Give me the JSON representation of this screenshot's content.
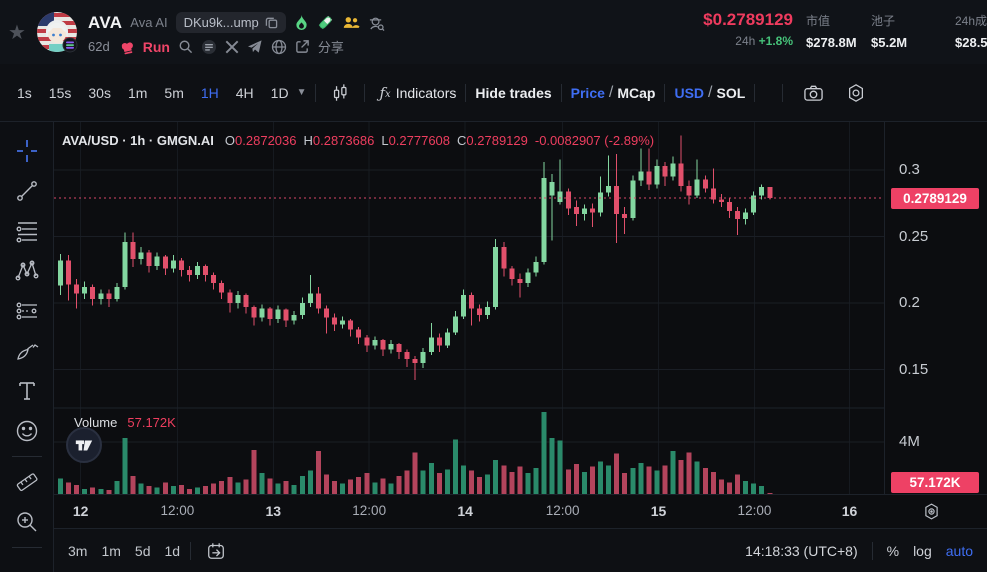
{
  "token_header": {
    "symbol": "AVA",
    "name": "Ava AI",
    "address_short": "DKu9k...ump",
    "age": "62d",
    "run_label": "Run",
    "share_label": "分享",
    "price": "$0.2789129",
    "change_label": "24h",
    "change_value": "+1.8%",
    "stats": [
      {
        "label": "市值",
        "value": "$278.8M"
      },
      {
        "label": "池子",
        "value": "$5.2M"
      },
      {
        "label": "24h成",
        "value": "$28.5"
      }
    ]
  },
  "toolbar": {
    "timeframes": [
      "1s",
      "15s",
      "30s",
      "1m",
      "5m",
      "1H",
      "4H",
      "1D"
    ],
    "active_timeframe": "1H",
    "indicators_label": "Indicators",
    "hide_trades_label": "Hide trades",
    "price_label": "Price",
    "mcap_label": "MCap",
    "usd_label": "USD",
    "sol_label": "SOL",
    "slash": "/"
  },
  "sidebar_tools": [
    "crosshair",
    "trend-line",
    "fib-retracement",
    "xabcd-pattern",
    "long-short-position",
    "brush",
    "text",
    "emoji",
    "ruler",
    "zoom-in"
  ],
  "legend": {
    "title": "AVA/USD · 1h · GMGN.AI",
    "o_label": "O",
    "o": "0.2872036",
    "h_label": "H",
    "h": "0.2873686",
    "l_label": "L",
    "l": "0.2777608",
    "c_label": "C",
    "c": "0.2789129",
    "change": "-0.0082907 (-2.89%)"
  },
  "volume_pane": {
    "label": "Volume",
    "value": "57.172K"
  },
  "price_axis": {
    "ticks": [
      {
        "label": "0.3",
        "value": 0.3
      },
      {
        "label": "0.25",
        "value": 0.25
      },
      {
        "label": "0.2",
        "value": 0.2
      },
      {
        "label": "0.15",
        "value": 0.15
      }
    ],
    "current_badge": "0.2789129",
    "volume_tick": {
      "label": "4M",
      "value_m": 4
    },
    "volume_badge": "57.172K"
  },
  "time_axis": {
    "ticks": [
      {
        "label": "12",
        "idx": 2.5,
        "major": true
      },
      {
        "label": "12:00",
        "idx": 14.5,
        "major": false
      },
      {
        "label": "13",
        "idx": 26.4,
        "major": true
      },
      {
        "label": "12:00",
        "idx": 38.3,
        "major": false
      },
      {
        "label": "14",
        "idx": 50.2,
        "major": true
      },
      {
        "label": "12:00",
        "idx": 62.3,
        "major": false
      },
      {
        "label": "15",
        "idx": 74.2,
        "major": true
      },
      {
        "label": "12:00",
        "idx": 86.1,
        "major": false
      },
      {
        "label": "16",
        "idx": 97.9,
        "major": true
      }
    ]
  },
  "bottom_bar": {
    "ranges": [
      "3m",
      "1m",
      "5d",
      "1d"
    ],
    "clock": "14:18:33 (UTC+8)",
    "percent_label": "%",
    "log_label": "log",
    "auto_label": "auto"
  },
  "colors": {
    "accent_blue": "#3f6ef3",
    "candle_up": "#83d6a0",
    "candle_down": "#e1506b",
    "volume_up": "#2a8a6a",
    "volume_down": "#b3445c",
    "badge_red": "#ee4165",
    "price_red": "#ee3e5f",
    "positive_green": "#46c279",
    "grid": "#1a1e25",
    "grid_vertical": "#161a20",
    "current_price_line": "#d8486a"
  },
  "chart_data": {
    "type": "candlestick",
    "symbol": "AVA/USD",
    "interval": "1h",
    "source": "GMGN.AI",
    "current_price": 0.2789129,
    "current_volume_label": "57.172K",
    "price_axis_range_visible": [
      0.13,
      0.33
    ],
    "volume_axis_max_m": 6.6,
    "candles_ohlc": [
      [
        0.213,
        0.237,
        0.206,
        0.232
      ],
      [
        0.232,
        0.236,
        0.202,
        0.214
      ],
      [
        0.214,
        0.218,
        0.196,
        0.207
      ],
      [
        0.207,
        0.216,
        0.203,
        0.212
      ],
      [
        0.212,
        0.214,
        0.198,
        0.203
      ],
      [
        0.203,
        0.21,
        0.199,
        0.207
      ],
      [
        0.207,
        0.21,
        0.197,
        0.203
      ],
      [
        0.203,
        0.215,
        0.201,
        0.212
      ],
      [
        0.212,
        0.253,
        0.21,
        0.246
      ],
      [
        0.246,
        0.253,
        0.227,
        0.233
      ],
      [
        0.233,
        0.242,
        0.229,
        0.238
      ],
      [
        0.238,
        0.24,
        0.223,
        0.228
      ],
      [
        0.228,
        0.238,
        0.225,
        0.235
      ],
      [
        0.235,
        0.236,
        0.221,
        0.226
      ],
      [
        0.226,
        0.236,
        0.223,
        0.232
      ],
      [
        0.232,
        0.234,
        0.22,
        0.225
      ],
      [
        0.225,
        0.228,
        0.216,
        0.221
      ],
      [
        0.221,
        0.231,
        0.218,
        0.228
      ],
      [
        0.228,
        0.229,
        0.216,
        0.221
      ],
      [
        0.221,
        0.223,
        0.21,
        0.215
      ],
      [
        0.215,
        0.217,
        0.203,
        0.208
      ],
      [
        0.208,
        0.21,
        0.193,
        0.2
      ],
      [
        0.2,
        0.209,
        0.196,
        0.206
      ],
      [
        0.206,
        0.207,
        0.192,
        0.197
      ],
      [
        0.197,
        0.198,
        0.183,
        0.189
      ],
      [
        0.189,
        0.199,
        0.186,
        0.196
      ],
      [
        0.196,
        0.197,
        0.183,
        0.188
      ],
      [
        0.188,
        0.198,
        0.185,
        0.195
      ],
      [
        0.195,
        0.196,
        0.182,
        0.187
      ],
      [
        0.187,
        0.194,
        0.184,
        0.191
      ],
      [
        0.191,
        0.204,
        0.188,
        0.2
      ],
      [
        0.2,
        0.221,
        0.197,
        0.207
      ],
      [
        0.207,
        0.212,
        0.192,
        0.196
      ],
      [
        0.196,
        0.198,
        0.177,
        0.189
      ],
      [
        0.189,
        0.192,
        0.179,
        0.184
      ],
      [
        0.184,
        0.19,
        0.181,
        0.187
      ],
      [
        0.187,
        0.188,
        0.175,
        0.18
      ],
      [
        0.18,
        0.182,
        0.169,
        0.174
      ],
      [
        0.174,
        0.176,
        0.163,
        0.168
      ],
      [
        0.168,
        0.175,
        0.165,
        0.172
      ],
      [
        0.172,
        0.173,
        0.16,
        0.165
      ],
      [
        0.165,
        0.172,
        0.162,
        0.169
      ],
      [
        0.169,
        0.17,
        0.158,
        0.163
      ],
      [
        0.163,
        0.165,
        0.152,
        0.158
      ],
      [
        0.158,
        0.16,
        0.142,
        0.155
      ],
      [
        0.155,
        0.166,
        0.151,
        0.163
      ],
      [
        0.163,
        0.185,
        0.161,
        0.174
      ],
      [
        0.174,
        0.177,
        0.163,
        0.168
      ],
      [
        0.168,
        0.181,
        0.166,
        0.178
      ],
      [
        0.178,
        0.194,
        0.176,
        0.19
      ],
      [
        0.19,
        0.21,
        0.188,
        0.206
      ],
      [
        0.206,
        0.208,
        0.183,
        0.196
      ],
      [
        0.196,
        0.199,
        0.186,
        0.191
      ],
      [
        0.191,
        0.201,
        0.188,
        0.197
      ],
      [
        0.197,
        0.248,
        0.195,
        0.242
      ],
      [
        0.242,
        0.246,
        0.22,
        0.226
      ],
      [
        0.226,
        0.228,
        0.213,
        0.218
      ],
      [
        0.218,
        0.222,
        0.204,
        0.215
      ],
      [
        0.215,
        0.226,
        0.212,
        0.223
      ],
      [
        0.223,
        0.235,
        0.22,
        0.231
      ],
      [
        0.231,
        0.306,
        0.229,
        0.294
      ],
      [
        0.281,
        0.297,
        0.247,
        0.291
      ],
      [
        0.276,
        0.308,
        0.274,
        0.284
      ],
      [
        0.284,
        0.286,
        0.266,
        0.271
      ],
      [
        0.272,
        0.277,
        0.258,
        0.267
      ],
      [
        0.267,
        0.274,
        0.262,
        0.271
      ],
      [
        0.271,
        0.275,
        0.257,
        0.268
      ],
      [
        0.268,
        0.295,
        0.265,
        0.283
      ],
      [
        0.283,
        0.311,
        0.28,
        0.288
      ],
      [
        0.288,
        0.312,
        0.245,
        0.267
      ],
      [
        0.267,
        0.272,
        0.252,
        0.264
      ],
      [
        0.264,
        0.296,
        0.262,
        0.292
      ],
      [
        0.292,
        0.316,
        0.288,
        0.299
      ],
      [
        0.299,
        0.316,
        0.285,
        0.289
      ],
      [
        0.289,
        0.308,
        0.286,
        0.303
      ],
      [
        0.303,
        0.306,
        0.288,
        0.295
      ],
      [
        0.295,
        0.31,
        0.292,
        0.305
      ],
      [
        0.305,
        0.326,
        0.284,
        0.288
      ],
      [
        0.288,
        0.292,
        0.274,
        0.281
      ],
      [
        0.281,
        0.308,
        0.279,
        0.293
      ],
      [
        0.293,
        0.296,
        0.283,
        0.286
      ],
      [
        0.286,
        0.301,
        0.275,
        0.278
      ],
      [
        0.278,
        0.282,
        0.272,
        0.276
      ],
      [
        0.276,
        0.279,
        0.264,
        0.269
      ],
      [
        0.269,
        0.272,
        0.251,
        0.263
      ],
      [
        0.263,
        0.271,
        0.259,
        0.268
      ],
      [
        0.268,
        0.284,
        0.266,
        0.281
      ],
      [
        0.281,
        0.289,
        0.278,
        0.2872
      ],
      [
        0.2872036,
        0.2873686,
        0.2777608,
        0.2789129
      ]
    ],
    "volumes_m": [
      1.2,
      0.9,
      0.7,
      0.4,
      0.5,
      0.4,
      0.3,
      1.0,
      4.3,
      1.4,
      0.8,
      0.6,
      0.5,
      0.9,
      0.6,
      0.7,
      0.4,
      0.5,
      0.6,
      0.8,
      1.0,
      1.3,
      0.9,
      1.1,
      3.4,
      1.6,
      1.2,
      0.8,
      1.0,
      0.7,
      1.4,
      1.8,
      3.3,
      1.5,
      1.0,
      0.8,
      1.1,
      1.3,
      1.6,
      0.9,
      1.2,
      0.8,
      1.4,
      1.8,
      3.2,
      1.8,
      2.4,
      1.6,
      1.9,
      4.2,
      2.2,
      1.8,
      1.3,
      1.5,
      2.6,
      2.2,
      1.7,
      2.1,
      1.6,
      2.0,
      6.3,
      4.3,
      4.1,
      1.9,
      2.3,
      1.7,
      2.1,
      2.5,
      2.2,
      3.1,
      1.6,
      2.0,
      2.4,
      2.1,
      1.8,
      2.2,
      3.3,
      2.6,
      3.2,
      2.5,
      2.0,
      1.7,
      1.1,
      0.9,
      1.5,
      1.0,
      0.8,
      0.6,
      0.057
    ]
  }
}
